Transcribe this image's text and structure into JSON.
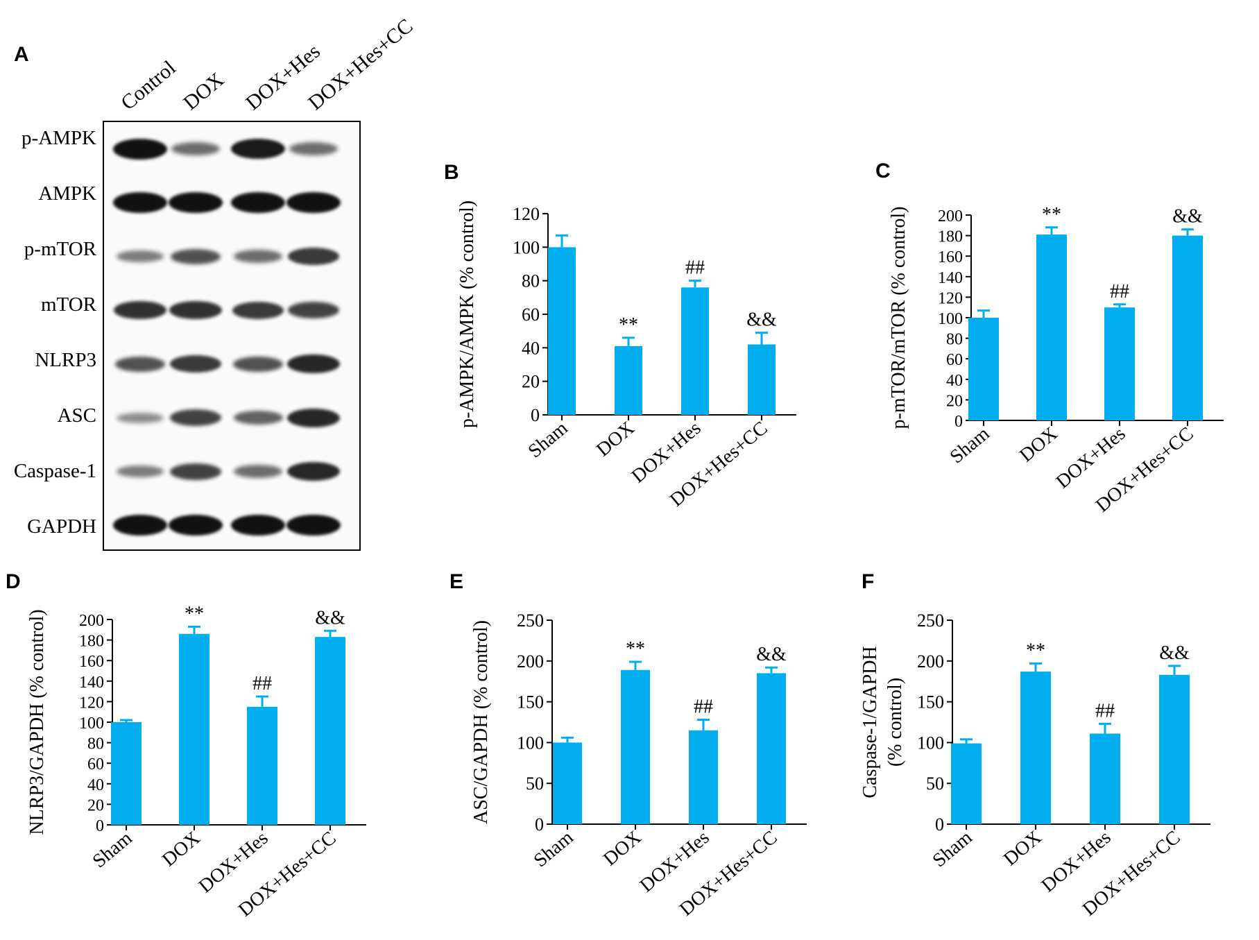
{
  "panel_labels": [
    "A",
    "B",
    "C",
    "D",
    "E",
    "F"
  ],
  "blot": {
    "lanes": [
      "Control",
      "DOX",
      "DOX+Hes",
      "DOX+Hes+CC"
    ],
    "proteins": [
      "p-AMPK",
      "AMPK",
      "p-mTOR",
      "mTOR",
      "NLRP3",
      "ASC",
      "Caspase-1",
      "GAPDH"
    ],
    "band_intensity": [
      [
        1.0,
        0.45,
        0.95,
        0.45
      ],
      [
        1.0,
        1.0,
        1.0,
        1.0
      ],
      [
        0.35,
        0.6,
        0.45,
        0.75
      ],
      [
        0.8,
        0.8,
        0.75,
        0.7
      ],
      [
        0.6,
        0.75,
        0.6,
        0.85
      ],
      [
        0.25,
        0.7,
        0.5,
        0.85
      ],
      [
        0.35,
        0.7,
        0.45,
        0.85
      ],
      [
        1.0,
        1.0,
        1.0,
        1.0
      ]
    ],
    "band_color": "#111111"
  },
  "colors": {
    "bar": "#00aeef",
    "axis": "#000000"
  },
  "chart_data": [
    {
      "panel": "B",
      "type": "bar",
      "categories": [
        "Sham",
        "DOX",
        "DOX+Hes",
        "DOX+Hes+CC"
      ],
      "values": [
        100,
        41,
        76,
        42
      ],
      "errors": [
        7,
        5,
        4,
        7
      ],
      "annotations": [
        "",
        "**",
        "##",
        "&&"
      ],
      "ylabel": [
        "p-AMPK/AMPK (% control)"
      ],
      "ylim": [
        0,
        120
      ],
      "yticks": [
        0,
        20,
        40,
        60,
        80,
        100,
        120
      ]
    },
    {
      "panel": "C",
      "type": "bar",
      "categories": [
        "Sham",
        "DOX",
        "DOX+Hes",
        "DOX+Hes+CC"
      ],
      "values": [
        100,
        181,
        110,
        180
      ],
      "errors": [
        7,
        7,
        3,
        6
      ],
      "annotations": [
        "",
        "**",
        "##",
        "&&"
      ],
      "ylabel": [
        "p-mTOR/mTOR (% control)"
      ],
      "ylim": [
        0,
        200
      ],
      "yticks": [
        0,
        20,
        40,
        60,
        80,
        100,
        120,
        140,
        160,
        180,
        200
      ]
    },
    {
      "panel": "D",
      "type": "bar",
      "categories": [
        "Sham",
        "DOX",
        "DOX+Hes",
        "DOX+Hes+CC"
      ],
      "values": [
        100,
        186,
        115,
        183
      ],
      "errors": [
        2,
        7,
        10,
        6
      ],
      "annotations": [
        "",
        "**",
        "##",
        "&&"
      ],
      "ylabel": [
        "NLRP3/GAPDH (% control)"
      ],
      "ylim": [
        0,
        200
      ],
      "yticks": [
        0,
        20,
        40,
        60,
        80,
        100,
        120,
        140,
        160,
        180,
        200
      ]
    },
    {
      "panel": "E",
      "type": "bar",
      "categories": [
        "Sham",
        "DOX",
        "DOX+Hes",
        "DOX+Hes+CC"
      ],
      "values": [
        100,
        189,
        115,
        185
      ],
      "errors": [
        6,
        10,
        13,
        7
      ],
      "annotations": [
        "",
        "**",
        "##",
        "&&"
      ],
      "ylabel": [
        "ASC/GAPDH (% control)"
      ],
      "ylim": [
        0,
        250
      ],
      "yticks": [
        0,
        50,
        100,
        150,
        200,
        250
      ]
    },
    {
      "panel": "F",
      "type": "bar",
      "categories": [
        "Sham",
        "DOX",
        "DOX+Hes",
        "DOX+Hes+CC"
      ],
      "values": [
        99,
        187,
        111,
        183
      ],
      "errors": [
        5,
        10,
        12,
        11
      ],
      "annotations": [
        "",
        "**",
        "##",
        "&&"
      ],
      "ylabel": [
        "Caspase-1/GAPDH",
        "(% control)"
      ],
      "ylim": [
        0,
        250
      ],
      "yticks": [
        0,
        50,
        100,
        150,
        200,
        250
      ]
    }
  ]
}
